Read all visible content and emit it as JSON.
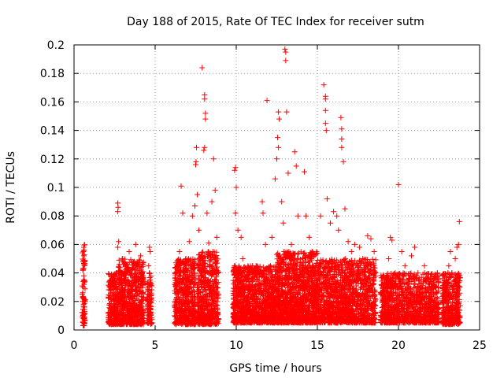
{
  "chart_data": {
    "type": "scatter",
    "title": "Day 188 of 2015, Rate Of TEC Index for receiver sutm",
    "xlabel": "GPS time / hours",
    "ylabel": "ROTI / TECUs",
    "xlim": [
      0,
      25
    ],
    "ylim": [
      0,
      0.2
    ],
    "grid": true,
    "marker": "+",
    "marker_color": "#ff0000",
    "x_ticks": [
      0,
      5,
      10,
      15,
      20,
      25
    ],
    "x_tick_labels": [
      "0",
      "5",
      "10",
      "15",
      "20",
      "25"
    ],
    "y_ticks": [
      0,
      0.02,
      0.04,
      0.06,
      0.08,
      0.1,
      0.12,
      0.14,
      0.16,
      0.18,
      0.2
    ],
    "y_tick_labels": [
      "0",
      "0.02",
      "0.04",
      "0.06",
      "0.08",
      "0.1",
      "0.12",
      "0.14",
      "0.16",
      "0.18",
      "0.2"
    ],
    "series": [
      {
        "name": "ROTI",
        "points": [
          [
            0.55,
            0.006
          ],
          [
            0.55,
            0.01
          ],
          [
            0.6,
            0.008
          ],
          [
            0.6,
            0.012
          ],
          [
            0.62,
            0.016
          ],
          [
            0.6,
            0.022
          ],
          [
            0.62,
            0.032
          ],
          [
            0.6,
            0.038
          ],
          [
            0.62,
            0.046
          ],
          [
            0.6,
            0.052
          ],
          [
            0.62,
            0.056
          ],
          [
            0.6,
            0.058
          ],
          [
            0.65,
            0.048
          ],
          [
            0.58,
            0.03
          ],
          [
            2.2,
            0.012
          ],
          [
            2.3,
            0.02
          ],
          [
            2.5,
            0.03
          ],
          [
            2.6,
            0.04
          ],
          [
            2.7,
            0.058
          ],
          [
            2.75,
            0.062
          ],
          [
            2.7,
            0.083
          ],
          [
            2.72,
            0.086
          ],
          [
            2.7,
            0.089
          ],
          [
            2.9,
            0.035
          ],
          [
            3.0,
            0.05
          ],
          [
            3.1,
            0.025
          ],
          [
            3.2,
            0.045
          ],
          [
            3.4,
            0.055
          ],
          [
            3.5,
            0.038
          ],
          [
            3.6,
            0.02
          ],
          [
            3.7,
            0.048
          ],
          [
            3.8,
            0.06
          ],
          [
            3.9,
            0.03
          ],
          [
            4.0,
            0.015
          ],
          [
            4.1,
            0.052
          ],
          [
            4.2,
            0.04
          ],
          [
            3.3,
            0.01
          ],
          [
            2.8,
            0.008
          ],
          [
            3.7,
            0.005
          ],
          [
            4.6,
            0.008
          ],
          [
            4.7,
            0.015
          ],
          [
            4.6,
            0.025
          ],
          [
            4.7,
            0.035
          ],
          [
            4.6,
            0.045
          ],
          [
            4.7,
            0.055
          ],
          [
            4.65,
            0.058
          ],
          [
            4.7,
            0.02
          ],
          [
            6.2,
            0.01
          ],
          [
            6.3,
            0.02
          ],
          [
            6.4,
            0.035
          ],
          [
            6.5,
            0.045
          ],
          [
            6.6,
            0.03
          ],
          [
            6.5,
            0.055
          ],
          [
            6.7,
            0.082
          ],
          [
            6.8,
            0.04
          ],
          [
            6.9,
            0.05
          ],
          [
            7.0,
            0.025
          ],
          [
            6.6,
            0.101
          ],
          [
            7.1,
            0.062
          ],
          [
            7.2,
            0.046
          ],
          [
            7.3,
            0.08
          ],
          [
            7.45,
            0.087
          ],
          [
            7.5,
            0.116
          ],
          [
            7.52,
            0.118
          ],
          [
            7.55,
            0.128
          ],
          [
            7.6,
            0.095
          ],
          [
            7.7,
            0.07
          ],
          [
            7.9,
            0.184
          ],
          [
            7.95,
            0.05
          ],
          [
            8.05,
            0.165
          ],
          [
            8.05,
            0.162
          ],
          [
            8.1,
            0.152
          ],
          [
            8.1,
            0.148
          ],
          [
            8.0,
            0.126
          ],
          [
            8.05,
            0.128
          ],
          [
            8.2,
            0.082
          ],
          [
            8.3,
            0.061
          ],
          [
            8.4,
            0.03
          ],
          [
            8.5,
            0.09
          ],
          [
            8.6,
            0.12
          ],
          [
            8.7,
            0.098
          ],
          [
            8.8,
            0.065
          ],
          [
            8.9,
            0.04
          ],
          [
            8.3,
            0.01
          ],
          [
            8.6,
            0.015
          ],
          [
            9.9,
            0.112
          ],
          [
            9.95,
            0.114
          ],
          [
            10.0,
            0.1
          ],
          [
            9.95,
            0.082
          ],
          [
            10.1,
            0.07
          ],
          [
            10.3,
            0.065
          ],
          [
            10.4,
            0.05
          ],
          [
            10.6,
            0.035
          ],
          [
            10.8,
            0.04
          ],
          [
            11.0,
            0.045
          ],
          [
            11.3,
            0.04
          ],
          [
            11.6,
            0.09
          ],
          [
            11.65,
            0.082
          ],
          [
            11.8,
            0.06
          ],
          [
            11.9,
            0.161
          ],
          [
            12.1,
            0.045
          ],
          [
            12.2,
            0.065
          ],
          [
            12.4,
            0.106
          ],
          [
            12.5,
            0.12
          ],
          [
            12.55,
            0.135
          ],
          [
            12.6,
            0.128
          ],
          [
            12.6,
            0.153
          ],
          [
            12.65,
            0.148
          ],
          [
            12.8,
            0.09
          ],
          [
            12.9,
            0.075
          ],
          [
            13.0,
            0.197
          ],
          [
            13.05,
            0.195
          ],
          [
            13.05,
            0.189
          ],
          [
            13.1,
            0.153
          ],
          [
            13.2,
            0.11
          ],
          [
            13.4,
            0.06
          ],
          [
            13.6,
            0.125
          ],
          [
            13.7,
            0.115
          ],
          [
            13.8,
            0.08
          ],
          [
            14.0,
            0.035
          ],
          [
            14.2,
            0.111
          ],
          [
            14.3,
            0.08
          ],
          [
            14.5,
            0.065
          ],
          [
            14.7,
            0.055
          ],
          [
            14.9,
            0.045
          ],
          [
            15.2,
            0.08
          ],
          [
            15.4,
            0.172
          ],
          [
            15.5,
            0.164
          ],
          [
            15.5,
            0.162
          ],
          [
            15.5,
            0.154
          ],
          [
            15.5,
            0.145
          ],
          [
            15.55,
            0.14
          ],
          [
            15.6,
            0.092
          ],
          [
            15.8,
            0.075
          ],
          [
            16.0,
            0.083
          ],
          [
            16.2,
            0.08
          ],
          [
            16.3,
            0.07
          ],
          [
            16.45,
            0.149
          ],
          [
            16.5,
            0.141
          ],
          [
            16.5,
            0.134
          ],
          [
            16.5,
            0.128
          ],
          [
            16.6,
            0.118
          ],
          [
            16.7,
            0.085
          ],
          [
            16.9,
            0.062
          ],
          [
            17.1,
            0.055
          ],
          [
            17.3,
            0.06
          ],
          [
            17.6,
            0.058
          ],
          [
            17.8,
            0.05
          ],
          [
            18.1,
            0.066
          ],
          [
            18.3,
            0.064
          ],
          [
            18.5,
            0.055
          ],
          [
            10.2,
            0.02
          ],
          [
            10.5,
            0.01
          ],
          [
            10.8,
            0.015
          ],
          [
            11.1,
            0.025
          ],
          [
            11.4,
            0.012
          ],
          [
            11.7,
            0.02
          ],
          [
            12.0,
            0.03
          ],
          [
            12.3,
            0.008
          ],
          [
            12.7,
            0.022
          ],
          [
            13.0,
            0.015
          ],
          [
            13.3,
            0.028
          ],
          [
            13.6,
            0.01
          ],
          [
            13.9,
            0.018
          ],
          [
            14.2,
            0.024
          ],
          [
            14.5,
            0.012
          ],
          [
            14.8,
            0.03
          ],
          [
            15.1,
            0.016
          ],
          [
            15.4,
            0.026
          ],
          [
            15.7,
            0.01
          ],
          [
            16.0,
            0.02
          ],
          [
            16.3,
            0.032
          ],
          [
            16.6,
            0.014
          ],
          [
            16.9,
            0.022
          ],
          [
            17.2,
            0.01
          ],
          [
            17.5,
            0.025
          ],
          [
            17.8,
            0.018
          ],
          [
            18.1,
            0.012
          ],
          [
            18.4,
            0.028
          ],
          [
            19.0,
            0.01
          ],
          [
            19.2,
            0.02
          ],
          [
            19.3,
            0.035
          ],
          [
            19.4,
            0.05
          ],
          [
            19.5,
            0.065
          ],
          [
            19.6,
            0.063
          ],
          [
            19.8,
            0.04
          ],
          [
            20.0,
            0.102
          ],
          [
            20.2,
            0.055
          ],
          [
            20.4,
            0.045
          ],
          [
            20.6,
            0.03
          ],
          [
            20.8,
            0.052
          ],
          [
            21.0,
            0.058
          ],
          [
            21.2,
            0.04
          ],
          [
            21.4,
            0.025
          ],
          [
            21.6,
            0.045
          ],
          [
            21.8,
            0.02
          ],
          [
            22.0,
            0.035
          ],
          [
            22.2,
            0.015
          ],
          [
            22.4,
            0.04
          ],
          [
            20.5,
            0.012
          ],
          [
            21.1,
            0.008
          ],
          [
            21.9,
            0.01
          ],
          [
            22.8,
            0.01
          ],
          [
            22.9,
            0.02
          ],
          [
            23.0,
            0.035
          ],
          [
            23.1,
            0.045
          ],
          [
            23.2,
            0.055
          ],
          [
            23.3,
            0.04
          ],
          [
            23.4,
            0.025
          ],
          [
            23.5,
            0.05
          ],
          [
            23.6,
            0.058
          ],
          [
            23.7,
            0.06
          ],
          [
            23.75,
            0.076
          ],
          [
            23.6,
            0.012
          ],
          [
            23.3,
            0.008
          ],
          [
            23.0,
            0.03
          ]
        ]
      }
    ],
    "dense_bands": [
      {
        "x": [
          0.5,
          0.7
        ],
        "y": [
          0.003,
          0.06
        ],
        "n": 70
      },
      {
        "x": [
          2.1,
          2.7
        ],
        "y": [
          0.004,
          0.04
        ],
        "n": 220
      },
      {
        "x": [
          2.7,
          4.3
        ],
        "y": [
          0.004,
          0.05
        ],
        "n": 650
      },
      {
        "x": [
          4.5,
          4.8
        ],
        "y": [
          0.004,
          0.04
        ],
        "n": 100
      },
      {
        "x": [
          6.2,
          7.5
        ],
        "y": [
          0.004,
          0.05
        ],
        "n": 520
      },
      {
        "x": [
          7.6,
          8.9
        ],
        "y": [
          0.004,
          0.055
        ],
        "n": 520
      },
      {
        "x": [
          9.8,
          12.5
        ],
        "y": [
          0.005,
          0.045
        ],
        "n": 1100
      },
      {
        "x": [
          12.5,
          15.0
        ],
        "y": [
          0.005,
          0.055
        ],
        "n": 1150
      },
      {
        "x": [
          15.0,
          18.6
        ],
        "y": [
          0.005,
          0.05
        ],
        "n": 1300
      },
      {
        "x": [
          18.9,
          19.7
        ],
        "y": [
          0.005,
          0.04
        ],
        "n": 300
      },
      {
        "x": [
          19.7,
          22.5
        ],
        "y": [
          0.005,
          0.04
        ],
        "n": 800
      },
      {
        "x": [
          22.7,
          23.8
        ],
        "y": [
          0.004,
          0.04
        ],
        "n": 400
      }
    ]
  }
}
